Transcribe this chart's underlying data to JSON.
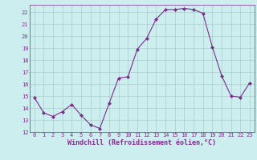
{
  "x": [
    0,
    1,
    2,
    3,
    4,
    5,
    6,
    7,
    8,
    9,
    10,
    11,
    12,
    13,
    14,
    15,
    16,
    17,
    18,
    19,
    20,
    21,
    22,
    23
  ],
  "y": [
    14.9,
    13.6,
    13.3,
    13.7,
    14.3,
    13.4,
    12.6,
    12.3,
    14.4,
    16.5,
    16.6,
    18.9,
    19.8,
    21.4,
    22.2,
    22.2,
    22.3,
    22.2,
    21.9,
    19.1,
    16.7,
    15.0,
    14.9,
    16.1
  ],
  "line_color": "#7b2d8b",
  "marker": "D",
  "markersize": 2.0,
  "linewidth": 0.8,
  "bg_color": "#cceeee",
  "grid_color": "#aacccc",
  "xlabel": "Windchill (Refroidissement éolien,°C)",
  "ylim": [
    12,
    22.6
  ],
  "xlim": [
    -0.5,
    23.5
  ],
  "yticks": [
    12,
    13,
    14,
    15,
    16,
    17,
    18,
    19,
    20,
    21,
    22
  ],
  "xticks": [
    0,
    1,
    2,
    3,
    4,
    5,
    6,
    7,
    8,
    9,
    10,
    11,
    12,
    13,
    14,
    15,
    16,
    17,
    18,
    19,
    20,
    21,
    22,
    23
  ],
  "tick_fontsize": 5.0,
  "xlabel_fontsize": 6.0
}
